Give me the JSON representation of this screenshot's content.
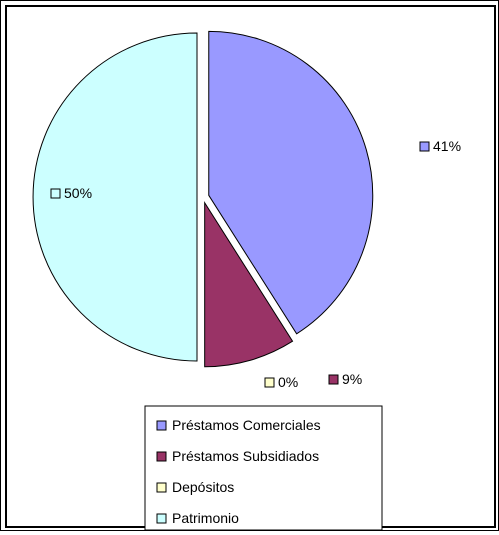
{
  "chart_data": {
    "type": "pie",
    "categories": [
      "Préstamos Comerciales",
      "Préstamos Subsidiados",
      "Depósitos",
      "Patrimonio"
    ],
    "values": [
      41,
      9,
      0,
      50
    ],
    "value_labels": [
      "41%",
      "9%",
      "0%",
      "50%"
    ],
    "colors": [
      "#9999ff",
      "#993366",
      "#ffffcc",
      "#ccffff"
    ],
    "exploded": true,
    "legend_position": "bottom"
  }
}
